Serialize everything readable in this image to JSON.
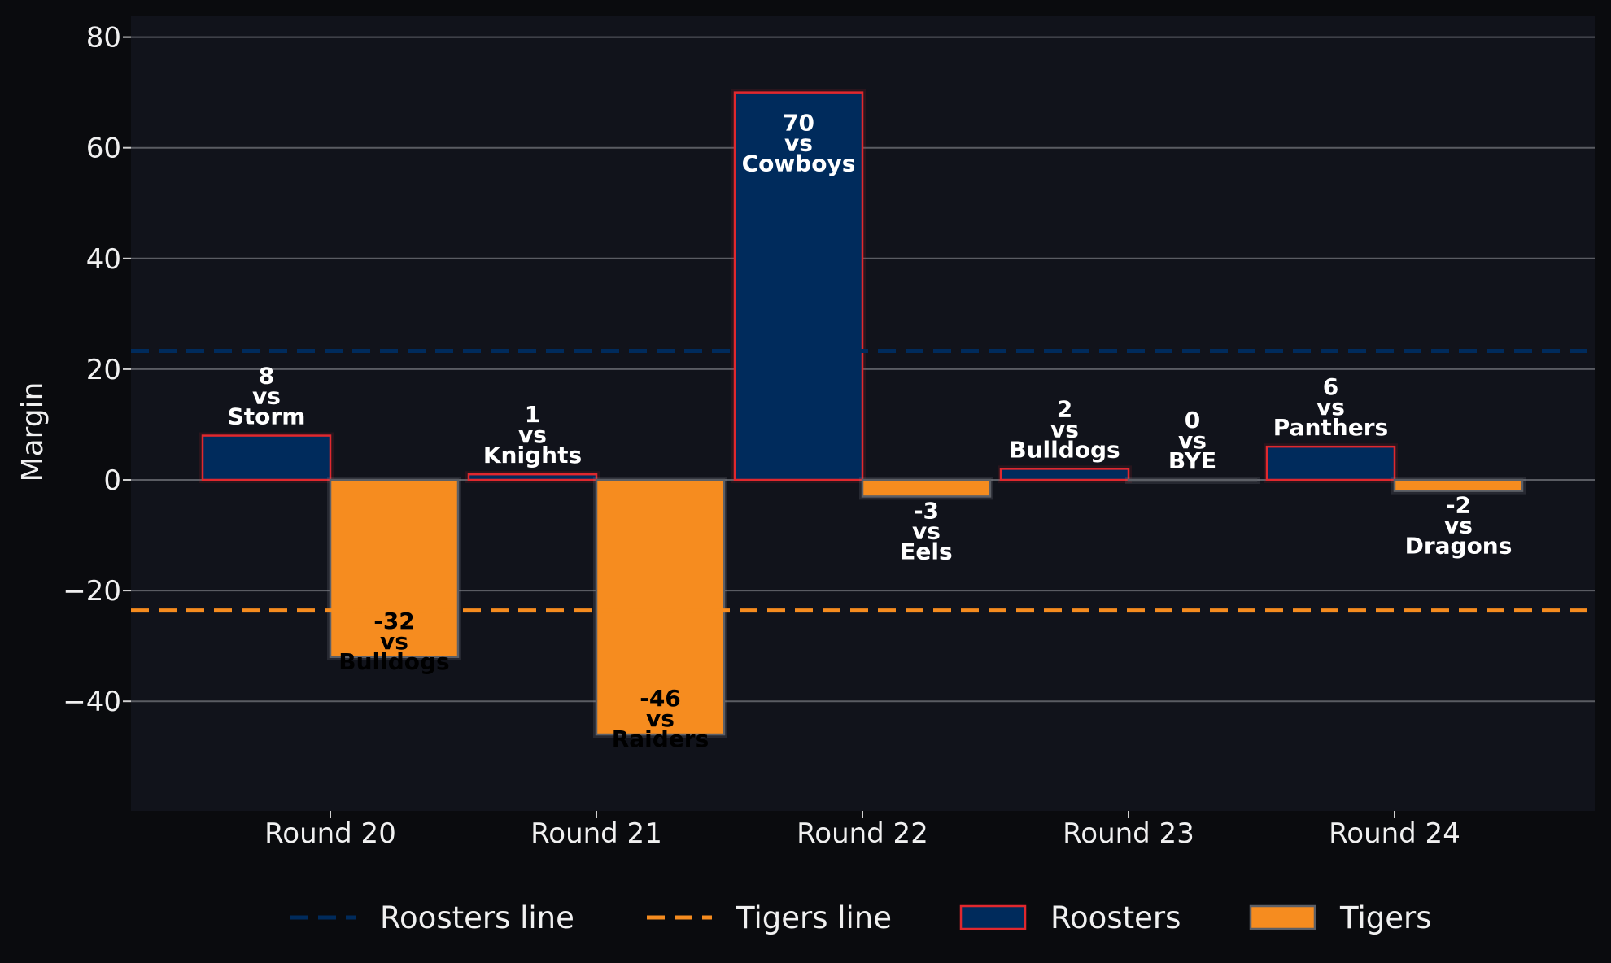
{
  "chart_data": {
    "type": "bar",
    "ylabel": "Margin",
    "ylim": [
      -60,
      84
    ],
    "yticks": [
      -40,
      -20,
      0,
      20,
      40,
      60,
      80
    ],
    "ytick_labels": [
      "−40",
      "−20",
      "0",
      "20",
      "40",
      "60",
      "80"
    ],
    "grid": true,
    "legend_placement": "bottom-center",
    "categories": [
      "Round 20",
      "Round 21",
      "Round 22",
      "Round 23",
      "Round 24"
    ],
    "series": [
      {
        "name": "Roosters",
        "color": "#002b5c",
        "edge_color": "#e0282e",
        "values": [
          8,
          1,
          70,
          2,
          6
        ],
        "labels": [
          "8\nvs\nStorm",
          "1\nvs\nKnights",
          "70\nvs\nCowboys",
          "2\nvs\nBulldogs",
          "6\nvs\nPanthers"
        ]
      },
      {
        "name": "Tigers",
        "color": "#f68c1f",
        "edge_color": "#5c5f66",
        "values": [
          -32,
          -46,
          -3,
          0,
          -2
        ],
        "labels": [
          "-32\nvs\nBulldogs",
          "-46\nvs\nRaiders",
          "-3\nvs\nEels",
          "0\nvs\nBYE",
          "-2\nvs\nDragons"
        ]
      }
    ],
    "reference_lines": [
      {
        "name": "Roosters line",
        "value": 23.3,
        "color": "#002b5c"
      },
      {
        "name": "Tigers line",
        "value": -23.6,
        "color": "#f68c1f"
      }
    ],
    "legend": [
      "Roosters line",
      "Tigers line",
      "Roosters",
      "Tigers"
    ]
  }
}
